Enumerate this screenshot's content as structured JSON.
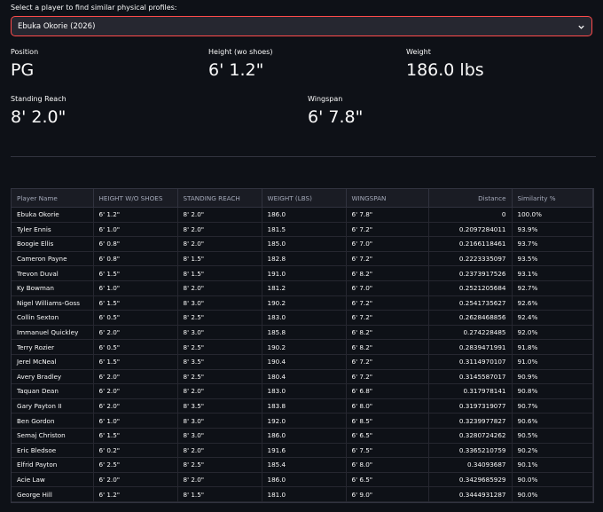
{
  "selector": {
    "label": "Select a player to find similar physical profiles:",
    "value": "Ebuka Okorie (2026)"
  },
  "metrics": [
    {
      "label": "Position",
      "value": "PG"
    },
    {
      "label": "Height (wo shoes)",
      "value": "6' 1.2\""
    },
    {
      "label": "Weight",
      "value": "186.0 lbs"
    },
    {
      "label": "Standing Reach",
      "value": "8' 2.0\""
    },
    {
      "label": "Wingspan",
      "value": "6' 7.8\""
    }
  ],
  "table": {
    "columns": [
      "Player Name",
      "HEIGHT W/O SHOES",
      "STANDING REACH",
      "WEIGHT (LBS)",
      "WINGSPAN",
      "Distance",
      "Similarity %"
    ],
    "rows": [
      [
        "Ebuka Okorie",
        "6' 1.2\"",
        "8' 2.0\"",
        "186.0",
        "6' 7.8\"",
        "0",
        "100.0%"
      ],
      [
        "Tyler Ennis",
        "6' 1.0\"",
        "8' 2.0\"",
        "181.5",
        "6' 7.2\"",
        "0.2097284011",
        "93.9%"
      ],
      [
        "Boogie Ellis",
        "6' 0.8\"",
        "8' 2.0\"",
        "185.0",
        "6' 7.0\"",
        "0.2166118461",
        "93.7%"
      ],
      [
        "Cameron Payne",
        "6' 0.8\"",
        "8' 1.5\"",
        "182.8",
        "6' 7.2\"",
        "0.2223335097",
        "93.5%"
      ],
      [
        "Trevon Duval",
        "6' 1.5\"",
        "8' 1.5\"",
        "191.0",
        "6' 8.2\"",
        "0.2373917526",
        "93.1%"
      ],
      [
        "Ky Bowman",
        "6' 1.0\"",
        "8' 2.0\"",
        "181.2",
        "6' 7.0\"",
        "0.2521205684",
        "92.7%"
      ],
      [
        "Nigel Williams-Goss",
        "6' 1.5\"",
        "8' 3.0\"",
        "190.2",
        "6' 7.2\"",
        "0.2541735627",
        "92.6%"
      ],
      [
        "Collin Sexton",
        "6' 0.5\"",
        "8' 2.5\"",
        "183.0",
        "6' 7.2\"",
        "0.2628468856",
        "92.4%"
      ],
      [
        "Immanuel Quickley",
        "6' 2.0\"",
        "8' 3.0\"",
        "185.8",
        "6' 8.2\"",
        "0.274228485",
        "92.0%"
      ],
      [
        "Terry Rozier",
        "6' 0.5\"",
        "8' 2.5\"",
        "190.2",
        "6' 8.2\"",
        "0.2839471991",
        "91.8%"
      ],
      [
        "Jerel McNeal",
        "6' 1.5\"",
        "8' 3.5\"",
        "190.4",
        "6' 7.2\"",
        "0.3114970107",
        "91.0%"
      ],
      [
        "Avery Bradley",
        "6' 2.0\"",
        "8' 2.5\"",
        "180.4",
        "6' 7.2\"",
        "0.3145587017",
        "90.9%"
      ],
      [
        "Taquan Dean",
        "6' 2.0\"",
        "8' 2.0\"",
        "183.0",
        "6' 6.8\"",
        "0.317978141",
        "90.8%"
      ],
      [
        "Gary Payton II",
        "6' 2.0\"",
        "8' 3.5\"",
        "183.8",
        "6' 8.0\"",
        "0.3197319077",
        "90.7%"
      ],
      [
        "Ben Gordon",
        "6' 1.0\"",
        "8' 3.0\"",
        "192.0",
        "6' 8.5\"",
        "0.3239977827",
        "90.6%"
      ],
      [
        "Semaj Christon",
        "6' 1.5\"",
        "8' 3.0\"",
        "186.0",
        "6' 6.5\"",
        "0.3280724262",
        "90.5%"
      ],
      [
        "Eric Bledsoe",
        "6' 0.2\"",
        "8' 2.0\"",
        "191.6",
        "6' 7.5\"",
        "0.3365210759",
        "90.2%"
      ],
      [
        "Elfrid Payton",
        "6' 2.5\"",
        "8' 2.5\"",
        "185.4",
        "6' 8.0\"",
        "0.34093687",
        "90.1%"
      ],
      [
        "Acie Law",
        "6' 2.0\"",
        "8' 2.0\"",
        "186.0",
        "6' 6.5\"",
        "0.3429685929",
        "90.0%"
      ],
      [
        "George Hill",
        "6' 1.2\"",
        "8' 1.5\"",
        "181.0",
        "6' 9.0\"",
        "0.3444931287",
        "90.0%"
      ]
    ]
  }
}
